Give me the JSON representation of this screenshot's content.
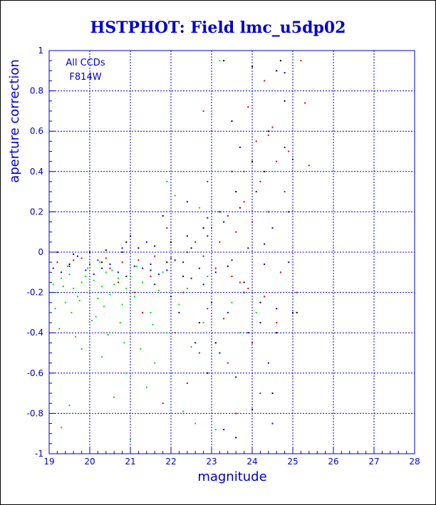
{
  "chart_data": {
    "type": "scatter",
    "title": "HSTPHOT: Field lmc_u5dp02",
    "xlabel": "magnitude",
    "ylabel": "aperture correction",
    "xlim": [
      19,
      28
    ],
    "ylim": [
      -1,
      1
    ],
    "x_ticks": [
      "19",
      "20",
      "21",
      "22",
      "23",
      "24",
      "25",
      "26",
      "27",
      "28"
    ],
    "y_ticks": [
      "1",
      "0.8",
      "0.6",
      "0.4",
      "0.2",
      "0",
      "-0.2",
      "-0.4",
      "-0.6",
      "-0.8",
      "-1"
    ],
    "grid": true,
    "annotations": [
      "All CCDs",
      "F814W"
    ],
    "series": [
      {
        "color": "#00dd00",
        "points": [
          [
            19.1,
            -0.16
          ],
          [
            19.2,
            -0.2
          ],
          [
            19.3,
            -0.13
          ],
          [
            19.4,
            -0.25
          ],
          [
            19.5,
            -0.11
          ],
          [
            19.6,
            -0.18
          ],
          [
            19.7,
            -0.22
          ],
          [
            19.8,
            -0.15
          ],
          [
            19.9,
            -0.12
          ],
          [
            20.0,
            -0.19
          ],
          [
            20.1,
            -0.14
          ],
          [
            20.2,
            -0.23
          ],
          [
            20.3,
            -0.17
          ],
          [
            20.4,
            -0.1
          ],
          [
            20.5,
            -0.21
          ],
          [
            20.6,
            -0.16
          ],
          [
            20.7,
            -0.13
          ],
          [
            20.8,
            -0.26
          ],
          [
            20.9,
            -0.18
          ],
          [
            21.0,
            -0.12
          ],
          [
            19.15,
            -0.28
          ],
          [
            19.35,
            -0.17
          ],
          [
            19.55,
            -0.3
          ],
          [
            19.75,
            -0.24
          ],
          [
            19.95,
            -0.08
          ],
          [
            20.15,
            -0.32
          ],
          [
            20.35,
            -0.27
          ],
          [
            20.55,
            -0.09
          ],
          [
            20.75,
            -0.35
          ],
          [
            21.1,
            -0.22
          ],
          [
            21.3,
            -0.15
          ],
          [
            21.5,
            -0.3
          ],
          [
            21.7,
            -0.19
          ],
          [
            21.9,
            -0.4
          ],
          [
            22.2,
            -0.26
          ],
          [
            22.5,
            -0.47
          ],
          [
            22.8,
            -0.35
          ],
          [
            19.25,
            -0.38
          ],
          [
            19.65,
            -0.42
          ],
          [
            20.05,
            -0.34
          ],
          [
            20.45,
            -0.41
          ],
          [
            20.85,
            -0.45
          ],
          [
            21.25,
            -0.48
          ],
          [
            21.6,
            -0.55
          ],
          [
            22.0,
            -0.6
          ],
          [
            20.6,
            -0.72
          ],
          [
            21.4,
            -0.67
          ],
          [
            19.5,
            -0.76
          ],
          [
            19.3,
            -0.87
          ],
          [
            22.6,
            -0.85
          ],
          [
            23.1,
            -0.88
          ],
          [
            22.3,
            -0.79
          ],
          [
            21.0,
            -0.93
          ],
          [
            20.9,
            -0.6
          ],
          [
            22.1,
            0.28
          ],
          [
            21.9,
            0.35
          ],
          [
            22.7,
            0.22
          ],
          [
            23.2,
            0.95
          ],
          [
            19.8,
            -0.48
          ],
          [
            20.3,
            -0.52
          ],
          [
            21.8,
            -0.1
          ],
          [
            22.4,
            -0.18
          ],
          [
            23.5,
            -0.25
          ],
          [
            20.25,
            -0.05
          ],
          [
            19.45,
            -0.07
          ],
          [
            21.15,
            -0.07
          ],
          [
            22.9,
            -0.12
          ],
          [
            23.7,
            -0.4
          ],
          [
            24.1,
            -0.3
          ],
          [
            21.55,
            -0.36
          ]
        ]
      },
      {
        "color": "#dd0000",
        "points": [
          [
            19.2,
            -0.05
          ],
          [
            19.6,
            -0.04
          ],
          [
            20.0,
            -0.06
          ],
          [
            20.4,
            -0.03
          ],
          [
            20.8,
            -0.05
          ],
          [
            21.2,
            -0.04
          ],
          [
            21.6,
            -0.02
          ],
          [
            22.0,
            -0.03
          ],
          [
            22.4,
            0.0
          ],
          [
            22.8,
            -0.02
          ],
          [
            23.2,
            0.05
          ],
          [
            23.6,
            0.1
          ],
          [
            24.0,
            0.15
          ],
          [
            24.4,
            0.2
          ],
          [
            24.8,
            0.3
          ],
          [
            23.0,
            0.12
          ],
          [
            23.4,
            0.18
          ],
          [
            23.8,
            0.25
          ],
          [
            24.2,
            0.35
          ],
          [
            24.6,
            0.45
          ],
          [
            22.6,
            0.05
          ],
          [
            23.1,
            -0.08
          ],
          [
            23.5,
            -0.12
          ],
          [
            23.9,
            -0.18
          ],
          [
            24.3,
            -0.22
          ],
          [
            24.7,
            -0.1
          ],
          [
            22.3,
            -0.2
          ],
          [
            22.9,
            -0.28
          ],
          [
            23.3,
            -0.33
          ],
          [
            23.7,
            -0.15
          ],
          [
            24.1,
            0.55
          ],
          [
            24.5,
            0.62
          ],
          [
            23.9,
            0.72
          ],
          [
            24.3,
            0.85
          ],
          [
            25.2,
            0.95
          ],
          [
            25.3,
            0.74
          ],
          [
            24.4,
            0.58
          ],
          [
            23.0,
            0.6
          ],
          [
            22.8,
            0.7
          ],
          [
            21.9,
            0.12
          ],
          [
            21.5,
            -0.12
          ],
          [
            21.1,
            -0.2
          ],
          [
            20.7,
            -0.15
          ],
          [
            22.1,
            -0.4
          ],
          [
            22.7,
            -0.5
          ],
          [
            23.4,
            -0.55
          ],
          [
            24.0,
            -0.45
          ],
          [
            24.6,
            -0.35
          ],
          [
            25.1,
            -0.2
          ],
          [
            22.4,
            -0.65
          ],
          [
            23.6,
            -0.8
          ],
          [
            24.2,
            -0.7
          ],
          [
            21.8,
            -0.75
          ],
          [
            22.9,
            0.35
          ],
          [
            23.8,
            0.4
          ],
          [
            24.9,
            0.5
          ],
          [
            25.4,
            0.43
          ],
          [
            21.3,
            -0.3
          ],
          [
            20.5,
            -0.08
          ],
          [
            19.8,
            -0.03
          ]
        ]
      },
      {
        "color": "#0000dd",
        "points": [
          [
            19.1,
            -0.08
          ],
          [
            19.5,
            -0.07
          ],
          [
            19.9,
            -0.09
          ],
          [
            20.3,
            -0.08
          ],
          [
            20.7,
            -0.1
          ],
          [
            21.1,
            -0.07
          ],
          [
            21.5,
            -0.06
          ],
          [
            21.9,
            -0.09
          ],
          [
            22.3,
            -0.05
          ],
          [
            22.7,
            -0.08
          ],
          [
            23.1,
            -0.1
          ],
          [
            23.5,
            -0.04
          ],
          [
            23.9,
            0.02
          ],
          [
            24.3,
            -0.06
          ],
          [
            20.1,
            -0.11
          ],
          [
            20.5,
            -0.06
          ],
          [
            20.9,
            -0.12
          ],
          [
            21.3,
            -0.08
          ],
          [
            21.7,
            -0.11
          ],
          [
            22.1,
            -0.04
          ],
          [
            22.5,
            -0.13
          ],
          [
            22.9,
            0.08
          ],
          [
            23.3,
            0.15
          ],
          [
            23.7,
            0.22
          ],
          [
            24.1,
            0.3
          ],
          [
            24.5,
            0.12
          ],
          [
            23.0,
            -0.25
          ],
          [
            23.4,
            -0.3
          ],
          [
            23.8,
            -0.2
          ],
          [
            24.2,
            -0.35
          ],
          [
            24.6,
            -0.28
          ],
          [
            25.0,
            -0.3
          ],
          [
            22.2,
            -0.3
          ],
          [
            22.6,
            -0.45
          ],
          [
            23.2,
            -0.5
          ],
          [
            23.6,
            -0.62
          ],
          [
            24.0,
            -0.78
          ],
          [
            24.4,
            -0.55
          ],
          [
            23.5,
            0.4
          ],
          [
            24.8,
            0.52
          ],
          [
            25.0,
            0.46
          ],
          [
            24.6,
            0.9
          ],
          [
            24.8,
            0.89
          ],
          [
            23.7,
            0.52
          ],
          [
            22.9,
            0.17
          ],
          [
            21.4,
            0.05
          ],
          [
            20.8,
            0.02
          ],
          [
            19.7,
            -0.02
          ],
          [
            22.0,
            -0.22
          ],
          [
            21.6,
            -0.16
          ],
          [
            23.3,
            -0.88
          ],
          [
            24.5,
            -0.85
          ],
          [
            22.8,
            -0.16
          ],
          [
            24.3,
            0.04
          ],
          [
            20.2,
            -0.04
          ],
          [
            19.3,
            -0.1
          ],
          [
            21.0,
            0.08
          ],
          [
            23.9,
            -0.4
          ],
          [
            24.9,
            -0.05
          ],
          [
            22.4,
            0.25
          ]
        ]
      },
      {
        "color": "#000000",
        "points": [
          [
            19.2,
            0.0
          ],
          [
            19.6,
            -0.01
          ],
          [
            20.0,
            0.0
          ],
          [
            20.4,
            0.01
          ],
          [
            20.8,
            0.0
          ],
          [
            21.2,
            0.02
          ],
          [
            21.6,
            0.03
          ],
          [
            22.0,
            0.05
          ],
          [
            22.4,
            0.08
          ],
          [
            22.8,
            0.12
          ],
          [
            23.2,
            0.2
          ],
          [
            23.6,
            0.3
          ],
          [
            24.0,
            0.45
          ],
          [
            24.4,
            0.6
          ],
          [
            24.8,
            0.75
          ],
          [
            23.3,
            0.95
          ],
          [
            24.0,
            0.92
          ],
          [
            24.7,
            0.95
          ],
          [
            24.6,
            0.9
          ],
          [
            23.4,
            -0.07
          ],
          [
            23.8,
            -0.15
          ],
          [
            24.2,
            -0.25
          ],
          [
            24.6,
            -0.4
          ],
          [
            23.1,
            -0.45
          ],
          [
            22.7,
            -0.35
          ],
          [
            22.3,
            -0.12
          ],
          [
            21.9,
            -0.05
          ],
          [
            21.5,
            -0.09
          ],
          [
            20.3,
            -0.05
          ],
          [
            19.5,
            -0.06
          ],
          [
            23.6,
            -0.92
          ],
          [
            24.5,
            -0.7
          ],
          [
            22.9,
            -0.6
          ],
          [
            25.1,
            -0.3
          ],
          [
            24.9,
            0.2
          ],
          [
            23.5,
            0.65
          ],
          [
            24.3,
            0.4
          ],
          [
            20.9,
            0.05
          ],
          [
            21.8,
            0.18
          ],
          [
            22.5,
            0.02
          ]
        ]
      }
    ]
  }
}
